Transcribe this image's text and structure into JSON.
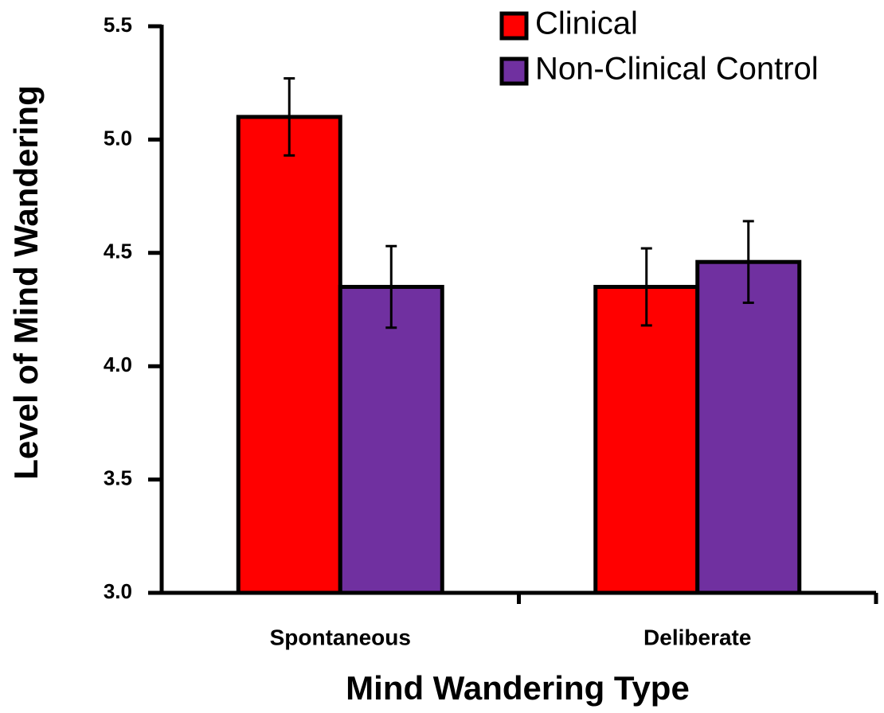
{
  "chart_data": {
    "type": "bar",
    "xlabel": "Mind Wandering Type",
    "ylabel": "Level of Mind Wandering",
    "categories": [
      "Spontaneous",
      "Deliberate"
    ],
    "series": [
      {
        "name": "Clinical",
        "color": "#ff0000",
        "values": [
          5.1,
          4.35
        ],
        "errors": [
          0.17,
          0.17
        ]
      },
      {
        "name": "Non-Clinical Control",
        "color": "#7030a0",
        "values": [
          4.35,
          4.46
        ],
        "errors": [
          0.18,
          0.18
        ]
      }
    ],
    "ylim": [
      3.0,
      5.5
    ],
    "yticks": [
      {
        "value": 3,
        "label": "3.0"
      },
      3.5,
      {
        "value": 4,
        "label": "4.0"
      },
      4.5,
      {
        "value": 5,
        "label": "5.0"
      },
      5.5
    ],
    "grid": false,
    "legend": "top-right"
  }
}
